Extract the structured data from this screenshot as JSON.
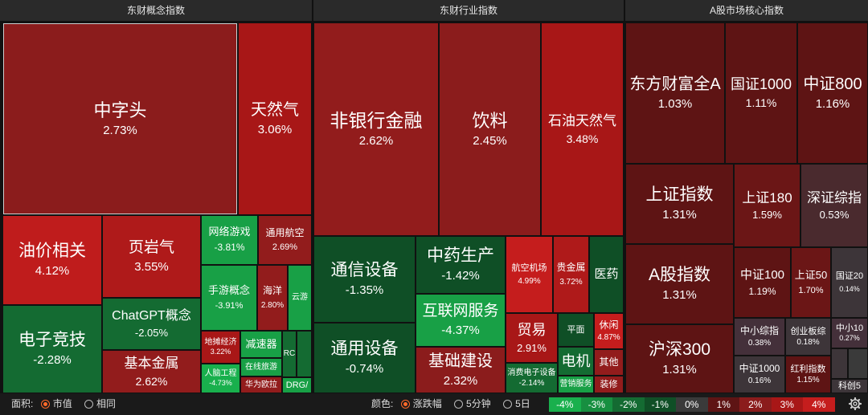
{
  "panels": [
    {
      "title": "东财概念指数"
    },
    {
      "title": "东财行业指数"
    },
    {
      "title": "A股市场核心指数"
    }
  ],
  "tiles": [
    {
      "name": "中字头",
      "change": "2.73%",
      "color": "#8b1c1c"
    },
    {
      "name": "天然气",
      "change": "3.06%",
      "color": "#a81717"
    },
    {
      "name": "油价相关",
      "change": "4.12%",
      "color": "#bf1c1c"
    },
    {
      "name": "页岩气",
      "change": "3.55%",
      "color": "#af1a1a"
    },
    {
      "name": "电子竞技",
      "change": "-2.28%",
      "color": "#146b32"
    },
    {
      "name": "ChatGPT概念",
      "change": "-2.05%",
      "color": "#146b32"
    },
    {
      "name": "基本金属",
      "change": "2.62%",
      "color": "#921c1c"
    },
    {
      "name": "网络游戏",
      "change": "-3.81%",
      "color": "#18a046"
    },
    {
      "name": "通用航空",
      "change": "2.69%",
      "color": "#921c1c"
    },
    {
      "name": "手游概念",
      "change": "-3.91%",
      "color": "#18a046"
    },
    {
      "name": "海洋",
      "change": "2.80%",
      "color": "#921c1c"
    },
    {
      "name": "云游",
      "change": "",
      "color": "#18a046"
    },
    {
      "name": "地摊经济",
      "change": "3.22%",
      "color": "#a81717"
    },
    {
      "name": "减速器",
      "change": "",
      "color": "#18a046"
    },
    {
      "name": "人脑工程",
      "change": "-4.73%",
      "color": "#19b04d"
    },
    {
      "name": "在线旅游",
      "change": "",
      "color": "#18a046"
    },
    {
      "name": "华为欧拉",
      "change": "",
      "color": "#921c1c"
    },
    {
      "name": "RC",
      "change": "",
      "color": "#146b32"
    },
    {
      "name": "",
      "change": "",
      "color": "#146b32"
    },
    {
      "name": "DRG/",
      "change": "",
      "color": "#18a046"
    },
    {
      "name": "非银行金融",
      "change": "2.62%",
      "color": "#921c1c"
    },
    {
      "name": "饮料",
      "change": "2.45%",
      "color": "#8b1c1c"
    },
    {
      "name": "石油天然气",
      "change": "3.48%",
      "color": "#a81717"
    },
    {
      "name": "通信设备",
      "change": "-1.35%",
      "color": "#0f4f26"
    },
    {
      "name": "中药生产",
      "change": "-1.42%",
      "color": "#0f4f26"
    },
    {
      "name": "互联网服务",
      "change": "-4.37%",
      "color": "#18a046"
    },
    {
      "name": "航空机场",
      "change": "4.99%",
      "color": "#c51d1d"
    },
    {
      "name": "贵金属",
      "change": "3.72%",
      "color": "#af1a1a"
    },
    {
      "name": "医药",
      "change": "",
      "color": "#0f4f26"
    },
    {
      "name": "通用设备",
      "change": "-0.74%",
      "color": "#0f4f26"
    },
    {
      "name": "基础建设",
      "change": "2.32%",
      "color": "#8b1c1c"
    },
    {
      "name": "贸易",
      "change": "2.91%",
      "color": "#a81717"
    },
    {
      "name": "平面",
      "change": "",
      "color": "#0f4f26"
    },
    {
      "name": "休闲",
      "change": "4.87%",
      "color": "#c51d1d"
    },
    {
      "name": "电机",
      "change": "",
      "color": "#146b32"
    },
    {
      "name": "其他",
      "change": "",
      "color": "#921c1c"
    },
    {
      "name": "消费电子设备",
      "change": "-2.14%",
      "color": "#146b32"
    },
    {
      "name": "营销服务",
      "change": "",
      "color": "#18a046"
    },
    {
      "name": "装修",
      "change": "",
      "color": "#921c1c"
    },
    {
      "name": "东方财富全A",
      "change": "1.03%",
      "color": "#5e1414"
    },
    {
      "name": "国证1000",
      "change": "1.11%",
      "color": "#5e1414"
    },
    {
      "name": "中证800",
      "change": "1.16%",
      "color": "#5e1414"
    },
    {
      "name": "上证指数",
      "change": "1.31%",
      "color": "#5e1414"
    },
    {
      "name": "上证180",
      "change": "1.59%",
      "color": "#6b1616"
    },
    {
      "name": "深证综指",
      "change": "0.53%",
      "color": "#4a2a2e"
    },
    {
      "name": "A股指数",
      "change": "1.31%",
      "color": "#5e1414"
    },
    {
      "name": "中证100",
      "change": "1.19%",
      "color": "#5e1414"
    },
    {
      "name": "上证50",
      "change": "1.70%",
      "color": "#6b1616"
    },
    {
      "name": "国证20",
      "change": "0.14%",
      "color": "#3d3539"
    },
    {
      "name": "中小综指",
      "change": "0.38%",
      "color": "#44303a"
    },
    {
      "name": "创业板综",
      "change": "0.18%",
      "color": "#3d3539"
    },
    {
      "name": "中小10",
      "change": "0.27%",
      "color": "#44303a"
    },
    {
      "name": "沪深300",
      "change": "1.31%",
      "color": "#5e1414"
    },
    {
      "name": "中证1000",
      "change": "0.16%",
      "color": "#3d3539"
    },
    {
      "name": "红利指数",
      "change": "1.15%",
      "color": "#5e1414"
    },
    {
      "name": "",
      "change": "",
      "color": "#3d3539"
    },
    {
      "name": "",
      "change": "",
      "color": "#3a3a3a"
    },
    {
      "name": "科创5",
      "change": "",
      "color": "#3d3539"
    }
  ],
  "bottombar": {
    "area_label": "面积:",
    "area_options": [
      "市值",
      "相同"
    ],
    "area_selected": 0,
    "color_label": "颜色:",
    "color_options": [
      "涨跌幅",
      "5分钟",
      "5日"
    ],
    "color_selected": 0,
    "legend": [
      {
        "label": "-4%",
        "color": "#19b04d"
      },
      {
        "label": "-3%",
        "color": "#178f40"
      },
      {
        "label": "-2%",
        "color": "#146b32"
      },
      {
        "label": "-1%",
        "color": "#0f4f26"
      },
      {
        "label": "0%",
        "color": "#3a3a3a"
      },
      {
        "label": "1%",
        "color": "#5e1414"
      },
      {
        "label": "2%",
        "color": "#8b1c1c"
      },
      {
        "label": "3%",
        "color": "#a81717"
      },
      {
        "label": "4%",
        "color": "#c51d1d"
      }
    ],
    "settings_icon": "gear-icon"
  }
}
